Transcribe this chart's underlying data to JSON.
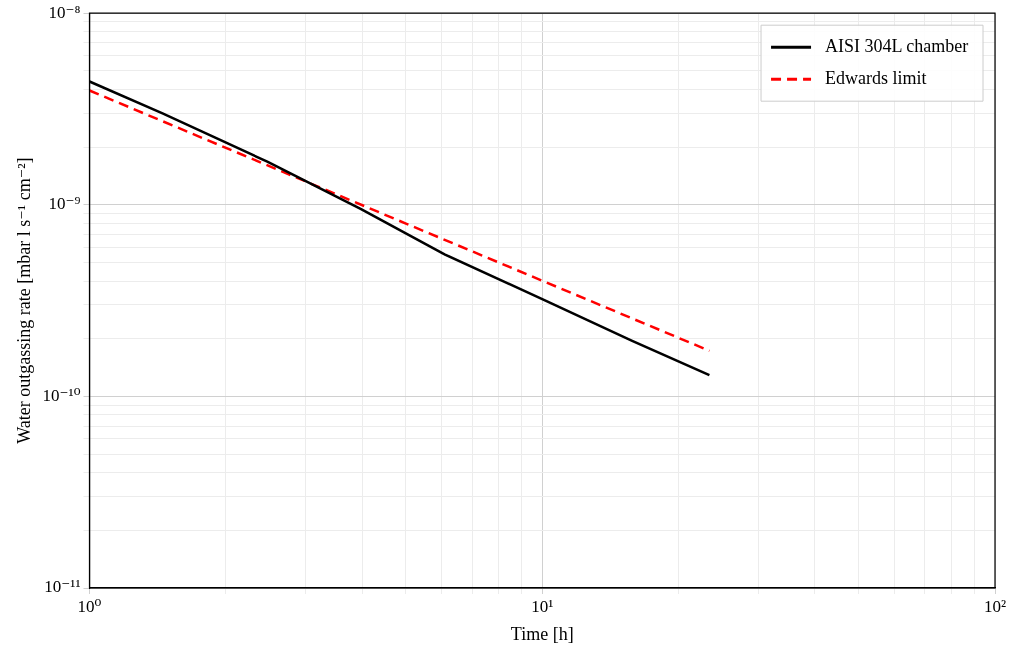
{
  "chart_data": {
    "type": "line",
    "xlabel": "Time [h]",
    "ylabel": "Water outgassing rate [mbar l s⁻¹ cm⁻²]",
    "log": "xy",
    "grid": true,
    "legend": "top right",
    "marker": "none",
    "xlim": [
      1,
      100
    ],
    "ylim": [
      1e-11,
      1e-08
    ],
    "xticks": [
      {
        "value": 1,
        "label": "10⁰"
      },
      {
        "value": 2,
        "label": null
      },
      {
        "value": 3,
        "label": null
      },
      {
        "value": 4,
        "label": null
      },
      {
        "value": 5,
        "label": null
      },
      {
        "value": 6,
        "label": null
      },
      {
        "value": 7,
        "label": null
      },
      {
        "value": 8,
        "label": null
      },
      {
        "value": 9,
        "label": null
      },
      {
        "value": 10,
        "label": "10¹"
      },
      {
        "value": 20,
        "label": null
      },
      {
        "value": 30,
        "label": null
      },
      {
        "value": 40,
        "label": null
      },
      {
        "value": 50,
        "label": null
      },
      {
        "value": 60,
        "label": null
      },
      {
        "value": 70,
        "label": null
      },
      {
        "value": 80,
        "label": null
      },
      {
        "value": 90,
        "label": null
      },
      {
        "value": 100,
        "label": "10²"
      }
    ],
    "yticks": [
      {
        "value": 1e-11,
        "label": "10⁻¹¹"
      },
      {
        "value": 2e-11,
        "label": null
      },
      {
        "value": 3e-11,
        "label": null
      },
      {
        "value": 4e-11,
        "label": null
      },
      {
        "value": 5e-11,
        "label": null
      },
      {
        "value": 6e-11,
        "label": null
      },
      {
        "value": 7e-11,
        "label": null
      },
      {
        "value": 8e-11,
        "label": null
      },
      {
        "value": 9e-11,
        "label": null
      },
      {
        "value": 1e-10,
        "label": "10⁻¹⁰"
      },
      {
        "value": 2e-10,
        "label": null
      },
      {
        "value": 3e-10,
        "label": null
      },
      {
        "value": 4e-10,
        "label": null
      },
      {
        "value": 5e-10,
        "label": null
      },
      {
        "value": 6e-10,
        "label": null
      },
      {
        "value": 7e-10,
        "label": null
      },
      {
        "value": 8e-10,
        "label": null
      },
      {
        "value": 9e-10,
        "label": null
      },
      {
        "value": 1e-09,
        "label": "10⁻⁹"
      },
      {
        "value": 2e-09,
        "label": null
      },
      {
        "value": 3e-09,
        "label": null
      },
      {
        "value": 4e-09,
        "label": null
      },
      {
        "value": 5e-09,
        "label": null
      },
      {
        "value": 6e-09,
        "label": null
      },
      {
        "value": 7e-09,
        "label": null
      },
      {
        "value": 8e-09,
        "label": null
      },
      {
        "value": 9e-09,
        "label": null
      },
      {
        "value": 1e-08,
        "label": "10⁻⁸"
      }
    ],
    "series": [
      {
        "name": "AISI 304L chamber",
        "color": "#000000",
        "line_style": "solid",
        "x": [
          1,
          1.45,
          2.47,
          3.98,
          6.1,
          10,
          15.8,
          23.4
        ],
        "values": [
          4.4e-09,
          3e-09,
          1.68e-09,
          9.5e-10,
          5.5e-10,
          3.22e-10,
          1.95e-10,
          1.29e-10
        ]
      },
      {
        "name": "Edwards limit",
        "color": "#ff0000",
        "line_style": "dashed",
        "x": [
          1,
          5,
          23.4
        ],
        "values": [
          3.95e-09,
          7.98e-10,
          1.73e-10
        ]
      }
    ]
  }
}
